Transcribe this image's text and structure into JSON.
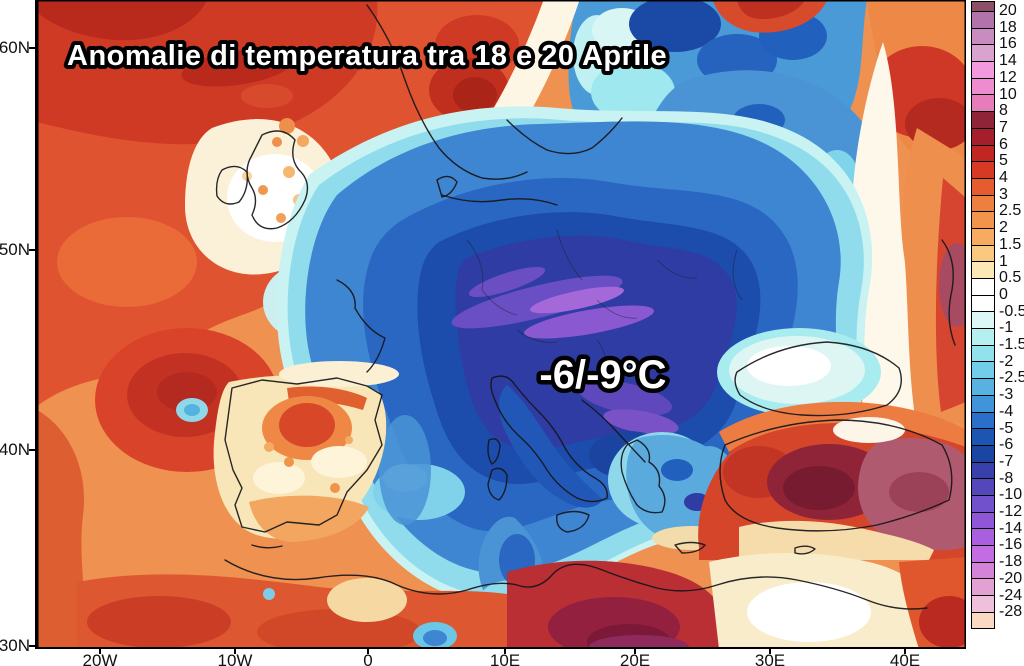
{
  "title": "Anomalie di temperatura tra 18 e 20 Aprile",
  "annotation": "-6/-9°C",
  "axes": {
    "lat_labels": [
      "60N",
      "50N",
      "40N",
      "30N"
    ],
    "lon_labels": [
      "20W",
      "10W",
      "0",
      "10E",
      "20E",
      "30E",
      "40E"
    ]
  },
  "colorbar": {
    "tick_labels": [
      "20",
      "18",
      "16",
      "14",
      "12",
      "10",
      "8",
      "7",
      "6",
      "5",
      "4",
      "3",
      "2.5",
      "2",
      "1.5",
      "1",
      "0.5",
      "0",
      "-0.5",
      "-1",
      "-1.5",
      "-2",
      "-2.5",
      "-3",
      "-4",
      "-5",
      "-6",
      "-7",
      "-8",
      "-10",
      "-12",
      "-14",
      "-16",
      "-18",
      "-20",
      "-24",
      "-28"
    ],
    "segment_colors": [
      "#8d4f66",
      "#b272aa",
      "#c98cc0",
      "#daa3cf",
      "#f29ade",
      "#ee8cd0",
      "#e67cba",
      "#8f2438",
      "#a41e2c",
      "#c02622",
      "#d63a24",
      "#e65c2e",
      "#ef7f3e",
      "#f3944c",
      "#f6ab60",
      "#f9c980",
      "#fce8b4",
      "#ffffff",
      "#ffffff",
      "#dcf7f5",
      "#b4f0f0",
      "#92e2ee",
      "#72cdea",
      "#57b2e2",
      "#4094da",
      "#2b70c8",
      "#1d55b2",
      "#1a46a2",
      "#3940aa",
      "#5347ba",
      "#7251cc",
      "#8f57d6",
      "#aa60de",
      "#c26ee2",
      "#d383d8",
      "#e3a0d2",
      "#efc0dc",
      "#f9d8c4"
    ]
  }
}
